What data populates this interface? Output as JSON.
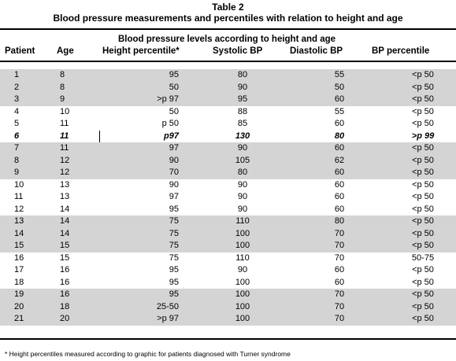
{
  "table": {
    "title": "Table 2",
    "subtitle": "Blood pressure measurements and percentiles with relation to height and age",
    "group_header": "Blood pressure levels according to height and age",
    "columns": [
      "Patient",
      "Age",
      "Height percentile*",
      "Systolic BP",
      "Diastolic BP",
      "BP percentile"
    ],
    "rows": [
      {
        "patient": "1",
        "age": "8",
        "height": "95",
        "systolic": "80",
        "diastolic": "55",
        "bp": "<p 50",
        "shaded": true
      },
      {
        "patient": "2",
        "age": "8",
        "height": "50",
        "systolic": "90",
        "diastolic": "50",
        "bp": "<p 50",
        "shaded": true
      },
      {
        "patient": "3",
        "age": "9",
        "height": ">p 97",
        "systolic": "95",
        "diastolic": "60",
        "bp": "<p 50",
        "shaded": true
      },
      {
        "patient": "4",
        "age": "10",
        "height": "50",
        "systolic": "88",
        "diastolic": "55",
        "bp": "<p 50",
        "shaded": false
      },
      {
        "patient": "5",
        "age": "11",
        "height": "p 50",
        "systolic": "85",
        "diastolic": "60",
        "bp": "<p 50",
        "shaded": false
      },
      {
        "patient": "6",
        "age": "11",
        "height": "p97",
        "systolic": "130",
        "diastolic": "80",
        "bp": ">p 99",
        "shaded": false,
        "bold": true
      },
      {
        "patient": "7",
        "age": "11",
        "height": "97",
        "systolic": "90",
        "diastolic": "60",
        "bp": "<p 50",
        "shaded": true
      },
      {
        "patient": "8",
        "age": "12",
        "height": "90",
        "systolic": "105",
        "diastolic": "62",
        "bp": "<p 50",
        "shaded": true
      },
      {
        "patient": "9",
        "age": "12",
        "height": "70",
        "systolic": "80",
        "diastolic": "60",
        "bp": "<p 50",
        "shaded": true
      },
      {
        "patient": "10",
        "age": "13",
        "height": "90",
        "systolic": "90",
        "diastolic": "60",
        "bp": "<p 50",
        "shaded": false
      },
      {
        "patient": "11",
        "age": "13",
        "height": "97",
        "systolic": "90",
        "diastolic": "60",
        "bp": "<p 50",
        "shaded": false
      },
      {
        "patient": "12",
        "age": "14",
        "height": "95",
        "systolic": "90",
        "diastolic": "60",
        "bp": "<p 50",
        "shaded": false
      },
      {
        "patient": "13",
        "age": "14",
        "height": "75",
        "systolic": "110",
        "diastolic": "80",
        "bp": "<p 50",
        "shaded": true
      },
      {
        "patient": "14",
        "age": "14",
        "height": "75",
        "systolic": "100",
        "diastolic": "70",
        "bp": "<p 50",
        "shaded": true
      },
      {
        "patient": "15",
        "age": "15",
        "height": "75",
        "systolic": "100",
        "diastolic": "70",
        "bp": "<p 50",
        "shaded": true
      },
      {
        "patient": "16",
        "age": "15",
        "height": "75",
        "systolic": "110",
        "diastolic": "70",
        "bp": "50-75",
        "shaded": false
      },
      {
        "patient": "17",
        "age": "16",
        "height": "95",
        "systolic": "90",
        "diastolic": "60",
        "bp": "<p 50",
        "shaded": false
      },
      {
        "patient": "18",
        "age": "16",
        "height": "95",
        "systolic": "100",
        "diastolic": "60",
        "bp": "<p 50",
        "shaded": false
      },
      {
        "patient": "19",
        "age": "16",
        "height": "95",
        "systolic": "100",
        "diastolic": "70",
        "bp": "<p 50",
        "shaded": true
      },
      {
        "patient": "20",
        "age": "18",
        "height": "25-50",
        "systolic": "100",
        "diastolic": "70",
        "bp": "<p 50",
        "shaded": true
      },
      {
        "patient": "21",
        "age": "20",
        "height": ">p 97",
        "systolic": "100",
        "diastolic": "70",
        "bp": "<p 50",
        "shaded": true
      }
    ],
    "footnote": "* Height percentiles measured according to graphic for patients diagnosed with Turner syndrome",
    "shade_color": "#d4d4d4"
  }
}
